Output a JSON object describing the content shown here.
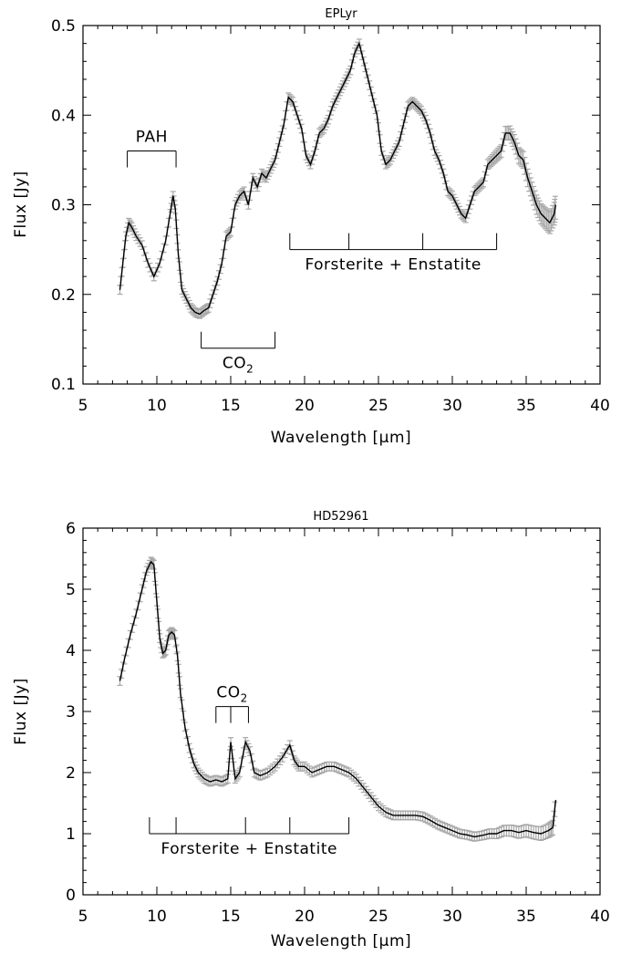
{
  "chart_data": [
    {
      "type": "line",
      "title": "EPLyr",
      "xlabel": "Wavelength [μm]",
      "ylabel": "Flux [Jy]",
      "xlim": [
        5,
        40
      ],
      "ylim": [
        0.1,
        0.5
      ],
      "x_ticks": [
        5,
        10,
        15,
        20,
        25,
        30,
        35,
        40
      ],
      "x_tick_labels": [
        "5",
        "10",
        "15",
        "20",
        "25",
        "30",
        "35",
        "40"
      ],
      "y_ticks": [
        0.1,
        0.2,
        0.3,
        0.4,
        0.5
      ],
      "y_tick_labels": [
        "0.1",
        "0.2",
        "0.3",
        "0.4",
        "0.5"
      ],
      "grid": false,
      "series": [
        {
          "color": "#000000",
          "error_color": "#a8a8a8",
          "x": [
            7.5,
            7.7,
            7.9,
            8.1,
            8.3,
            8.6,
            9.0,
            9.4,
            9.8,
            10.2,
            10.6,
            10.9,
            11.1,
            11.25,
            11.45,
            11.7,
            12.0,
            12.3,
            12.6,
            12.9,
            13.2,
            13.5,
            13.8,
            14.1,
            14.4,
            14.7,
            15.0,
            15.3,
            15.6,
            15.9,
            16.2,
            16.5,
            16.8,
            17.1,
            17.4,
            17.7,
            18.0,
            18.3,
            18.6,
            18.9,
            19.2,
            19.5,
            19.8,
            20.1,
            20.4,
            20.7,
            21.0,
            21.3,
            21.6,
            21.9,
            22.2,
            22.5,
            22.8,
            23.1,
            23.4,
            23.7,
            24.0,
            24.3,
            24.6,
            24.9,
            25.2,
            25.5,
            25.8,
            26.1,
            26.4,
            26.7,
            27.0,
            27.3,
            27.6,
            27.9,
            28.2,
            28.5,
            28.8,
            29.1,
            29.4,
            29.7,
            30.0,
            30.3,
            30.6,
            30.9,
            31.2,
            31.5,
            31.8,
            32.1,
            32.4,
            32.7,
            33.0,
            33.3,
            33.6,
            33.9,
            34.2,
            34.5,
            34.8,
            35.1,
            35.4,
            35.7,
            36.0,
            36.3,
            36.6,
            36.9,
            37.0
          ],
          "y": [
            0.205,
            0.235,
            0.265,
            0.28,
            0.275,
            0.265,
            0.255,
            0.235,
            0.22,
            0.235,
            0.26,
            0.29,
            0.31,
            0.295,
            0.245,
            0.205,
            0.195,
            0.185,
            0.18,
            0.178,
            0.182,
            0.185,
            0.2,
            0.215,
            0.235,
            0.265,
            0.27,
            0.3,
            0.31,
            0.315,
            0.3,
            0.33,
            0.32,
            0.335,
            0.33,
            0.34,
            0.35,
            0.37,
            0.39,
            0.42,
            0.415,
            0.4,
            0.385,
            0.355,
            0.345,
            0.36,
            0.38,
            0.385,
            0.395,
            0.41,
            0.42,
            0.43,
            0.44,
            0.45,
            0.47,
            0.48,
            0.46,
            0.44,
            0.42,
            0.4,
            0.36,
            0.345,
            0.35,
            0.36,
            0.37,
            0.39,
            0.41,
            0.415,
            0.41,
            0.405,
            0.395,
            0.38,
            0.36,
            0.35,
            0.335,
            0.315,
            0.31,
            0.3,
            0.29,
            0.285,
            0.3,
            0.315,
            0.32,
            0.325,
            0.345,
            0.35,
            0.355,
            0.36,
            0.38,
            0.38,
            0.37,
            0.355,
            0.35,
            0.33,
            0.315,
            0.3,
            0.29,
            0.285,
            0.28,
            0.29,
            0.3
          ]
        }
      ],
      "annotations": [
        {
          "label": "PAH",
          "x_from": 8.0,
          "x_to": 11.3,
          "y_bar": 0.36,
          "ticks_x": [
            8.0,
            11.3
          ],
          "side": "above"
        },
        {
          "label": "CO",
          "label_sub": "2",
          "x_from": 13.0,
          "x_to": 18.0,
          "y_bar": 0.14,
          "ticks_x": [
            13.0,
            18.0
          ],
          "side": "below"
        },
        {
          "label": "Forsterite + Enstatite",
          "x_from": 19.0,
          "x_to": 33.0,
          "y_bar": 0.25,
          "ticks_x": [
            19.0,
            23.0,
            28.0,
            33.0
          ],
          "side": "below"
        }
      ]
    },
    {
      "type": "line",
      "title": "HD52961",
      "xlabel": "Wavelength [μm]",
      "ylabel": "Flux [Jy]",
      "xlim": [
        5,
        40
      ],
      "ylim": [
        0,
        6
      ],
      "x_ticks": [
        5,
        10,
        15,
        20,
        25,
        30,
        35,
        40
      ],
      "x_tick_labels": [
        "5",
        "10",
        "15",
        "20",
        "25",
        "30",
        "35",
        "40"
      ],
      "y_ticks": [
        0,
        1,
        2,
        3,
        4,
        5,
        6
      ],
      "y_tick_labels": [
        "0",
        "1",
        "2",
        "3",
        "4",
        "5",
        "6"
      ],
      "grid": false,
      "series": [
        {
          "color": "#000000",
          "error_color": "#a8a8a8",
          "x": [
            7.5,
            7.8,
            8.2,
            8.6,
            9.0,
            9.3,
            9.6,
            9.8,
            10.0,
            10.2,
            10.4,
            10.6,
            10.8,
            11.0,
            11.2,
            11.4,
            11.6,
            11.9,
            12.2,
            12.5,
            12.8,
            13.2,
            13.6,
            14.0,
            14.4,
            14.8,
            15.0,
            15.3,
            15.6,
            16.0,
            16.3,
            16.6,
            17.0,
            17.5,
            18.0,
            18.5,
            19.0,
            19.3,
            19.6,
            20.0,
            20.5,
            21.0,
            21.5,
            22.0,
            22.5,
            23.0,
            23.5,
            24.0,
            24.5,
            25.0,
            25.5,
            26.0,
            26.5,
            27.0,
            27.5,
            28.0,
            28.5,
            29.0,
            29.5,
            30.0,
            30.5,
            31.0,
            31.5,
            32.0,
            32.5,
            33.0,
            33.5,
            34.0,
            34.5,
            35.0,
            35.5,
            36.0,
            36.5,
            36.8,
            37.0
          ],
          "y": [
            3.5,
            3.85,
            4.25,
            4.6,
            5.0,
            5.3,
            5.45,
            5.4,
            4.8,
            4.2,
            3.95,
            4.0,
            4.25,
            4.3,
            4.25,
            3.9,
            3.3,
            2.75,
            2.4,
            2.15,
            2.0,
            1.9,
            1.85,
            1.88,
            1.85,
            1.9,
            2.5,
            1.9,
            2.0,
            2.5,
            2.35,
            2.0,
            1.95,
            2.0,
            2.1,
            2.25,
            2.45,
            2.2,
            2.1,
            2.1,
            2.0,
            2.05,
            2.1,
            2.1,
            2.05,
            2.0,
            1.9,
            1.75,
            1.6,
            1.45,
            1.35,
            1.3,
            1.3,
            1.3,
            1.3,
            1.28,
            1.22,
            1.15,
            1.1,
            1.05,
            1.0,
            0.98,
            0.95,
            0.97,
            1.0,
            1.0,
            1.05,
            1.05,
            1.02,
            1.05,
            1.02,
            1.0,
            1.05,
            1.1,
            1.55
          ]
        }
      ],
      "annotations": [
        {
          "label": "CO",
          "label_sub": "2",
          "x_from": 14.0,
          "x_to": 16.2,
          "y_bar": 3.08,
          "ticks_x": [
            14.0,
            15.0,
            16.2
          ],
          "side": "above"
        },
        {
          "label": "Forsterite + Enstatite",
          "x_from": 9.5,
          "x_to": 23.0,
          "y_bar": 1.0,
          "ticks_x": [
            9.5,
            11.3,
            16.0,
            19.0,
            23.0
          ],
          "side": "below"
        }
      ]
    }
  ]
}
